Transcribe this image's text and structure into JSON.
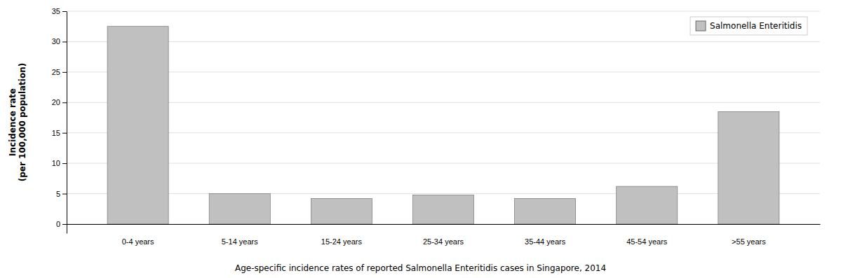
{
  "chart_data": {
    "type": "bar",
    "title": "Age-specific incidence rates of reported Salmonella Enteritidis cases in Singapore, 2014",
    "y_label": "Incidence rate\n(per 100,000 population)",
    "categories": [
      "0-4 years",
      "5-14 years",
      "15-24 years",
      "25-34 years",
      "35-44 years",
      "45-54 years",
      ">55 years"
    ],
    "series": [
      {
        "name": "Salmonella Enteritidis",
        "color": "#c0c0c0",
        "values": [
          32.5,
          5.0,
          4.2,
          4.8,
          4.2,
          6.2,
          18.5
        ]
      }
    ],
    "ylim": [
      -1.5,
      35
    ],
    "yticks": [
      0,
      5,
      10,
      15,
      20,
      25,
      30,
      35
    ],
    "grid": true,
    "legend": "upper right"
  }
}
